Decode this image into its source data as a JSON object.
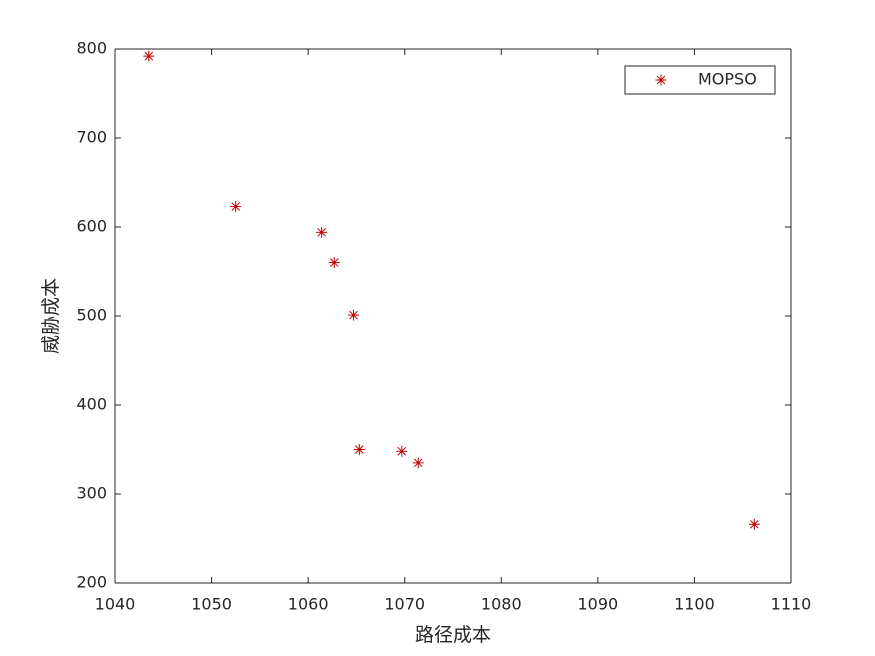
{
  "chart_data": {
    "type": "scatter",
    "xlabel": "路径成本",
    "ylabel": "威胁成本",
    "series": [
      {
        "name": "MOPSO",
        "color": "#c00000",
        "x": [
          1043.5,
          1052.5,
          1061.4,
          1062.7,
          1064.7,
          1065.3,
          1069.7,
          1071.4,
          1106.2
        ],
        "values": [
          792,
          623,
          594,
          560,
          501,
          350,
          348,
          335,
          266
        ]
      }
    ],
    "xlim": [
      1040,
      1110
    ],
    "xticks": [
      1040,
      1050,
      1060,
      1070,
      1080,
      1090,
      1100,
      1110
    ],
    "ylim": [
      200,
      800
    ],
    "yticks": [
      200,
      300,
      400,
      500,
      600,
      700,
      800
    ],
    "grid": false,
    "legend": "upper right"
  }
}
